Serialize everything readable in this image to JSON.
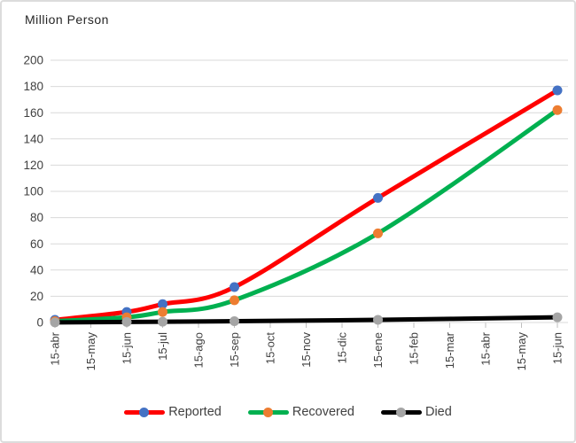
{
  "chart_data": {
    "type": "line",
    "axis_title": "Million Person",
    "categories": [
      "15-abr",
      "15-may",
      "15-jun",
      "15-jul",
      "15-ago",
      "15-sep",
      "15-oct",
      "15-nov",
      "15-dic",
      "15-ene",
      "15-feb",
      "15-mar",
      "15-abr",
      "15-may",
      "15-jun"
    ],
    "series": [
      {
        "name": "Reported",
        "line_color": "#ff0000",
        "marker_color": "#4472c4",
        "values": [
          2,
          null,
          8,
          14,
          null,
          27,
          null,
          null,
          null,
          95,
          null,
          null,
          null,
          null,
          177
        ]
      },
      {
        "name": "Recovered",
        "line_color": "#00b050",
        "marker_color": "#ed7d31",
        "values": [
          1,
          null,
          4,
          8,
          null,
          17,
          null,
          null,
          null,
          68,
          null,
          null,
          null,
          null,
          162
        ]
      },
      {
        "name": "Died",
        "line_color": "#000000",
        "marker_color": "#a5a5a5",
        "values": [
          0.1,
          null,
          0.4,
          0.6,
          null,
          1,
          null,
          null,
          null,
          2,
          null,
          null,
          null,
          null,
          4
        ]
      }
    ],
    "ylim": [
      0,
      200
    ],
    "yticks": [
      0,
      20,
      40,
      60,
      80,
      100,
      120,
      140,
      160,
      180,
      200
    ],
    "grid": true,
    "legend_position": "bottom",
    "x_label_rotation": -90
  },
  "colors": {
    "gridline": "#d9d9d9",
    "tick": "#bfbfbf",
    "axis_label": "#404040",
    "title_text": "#262626",
    "frame_border": "#dcdcdc"
  }
}
